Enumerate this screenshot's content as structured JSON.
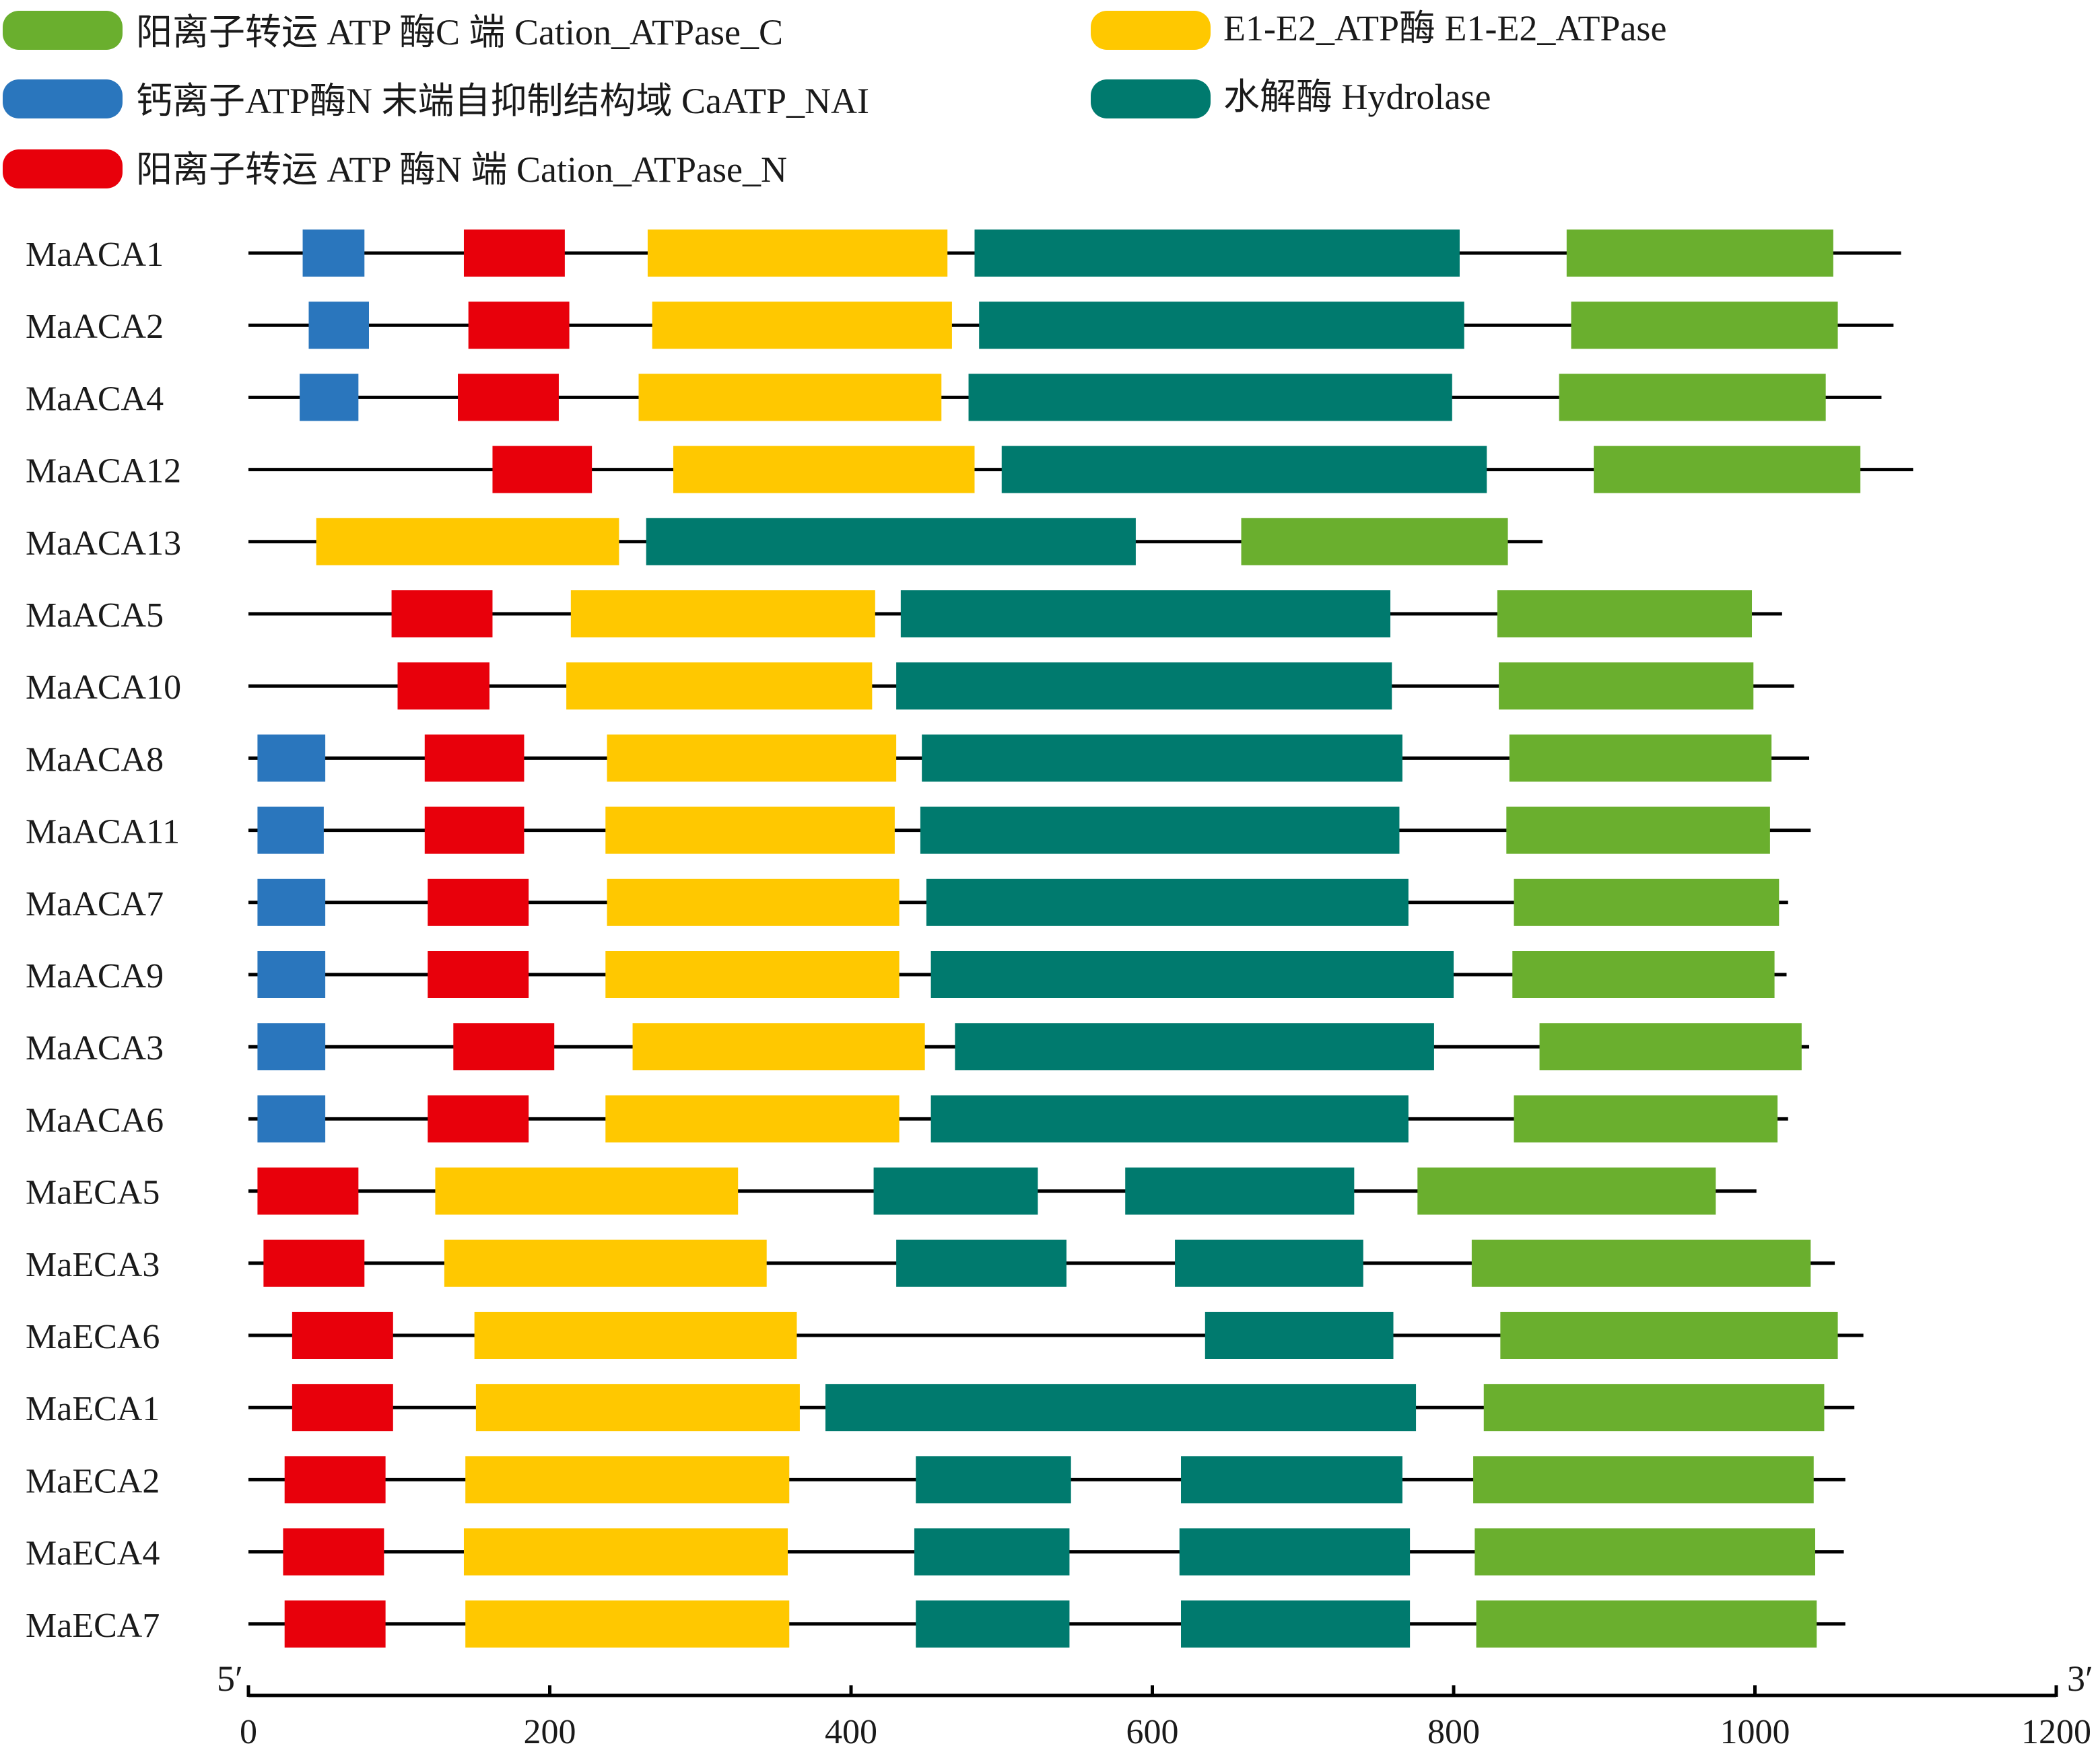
{
  "legend": [
    {
      "key": "cation_c",
      "label": "阳离子转运 ATP 酶C 端 Cation_ATPase_C"
    },
    {
      "key": "e1e2",
      "label": "E1-E2_ATP酶 E1-E2_ATPase"
    },
    {
      "key": "caatp_nai",
      "label": "钙离子ATP酶N 末端自抑制结构域 CaATP_NAI"
    },
    {
      "key": "hydrolase",
      "label": "水解酶 Hydrolase"
    },
    {
      "key": "cation_n",
      "label": "阳离子转运 ATP 酶N 端 Cation_ATPase_N"
    }
  ],
  "colors": {
    "cation_c": "#6aaf2e",
    "e1e2": "#ffc800",
    "caatp_nai": "#2a76bd",
    "hydrolase": "#007a6e",
    "cation_n": "#e8000b",
    "backbone": "#000000"
  },
  "axis": {
    "min": 0,
    "max": 1200,
    "ticks": [
      "0",
      "200",
      "400",
      "600",
      "800",
      "1000",
      "1200"
    ],
    "start_label": "5′",
    "end_label": "3′"
  },
  "chart_data": {
    "type": "domain-map",
    "x_range": [
      0,
      1200
    ],
    "genes": [
      {
        "name": "MaACA1",
        "length": 1097,
        "domains": [
          {
            "type": "caatp_nai",
            "start": 36,
            "end": 77
          },
          {
            "type": "cation_n",
            "start": 143,
            "end": 210
          },
          {
            "type": "e1e2",
            "start": 265,
            "end": 464
          },
          {
            "type": "hydrolase",
            "start": 482,
            "end": 804
          },
          {
            "type": "cation_c",
            "start": 875,
            "end": 1052
          }
        ]
      },
      {
        "name": "MaACA2",
        "length": 1092,
        "domains": [
          {
            "type": "caatp_nai",
            "start": 40,
            "end": 80
          },
          {
            "type": "cation_n",
            "start": 146,
            "end": 213
          },
          {
            "type": "e1e2",
            "start": 268,
            "end": 467
          },
          {
            "type": "hydrolase",
            "start": 485,
            "end": 807
          },
          {
            "type": "cation_c",
            "start": 878,
            "end": 1055
          }
        ]
      },
      {
        "name": "MaACA4",
        "length": 1084,
        "domains": [
          {
            "type": "caatp_nai",
            "start": 34,
            "end": 73
          },
          {
            "type": "cation_n",
            "start": 139,
            "end": 206
          },
          {
            "type": "e1e2",
            "start": 259,
            "end": 460
          },
          {
            "type": "hydrolase",
            "start": 478,
            "end": 799
          },
          {
            "type": "cation_c",
            "start": 870,
            "end": 1047
          }
        ]
      },
      {
        "name": "MaACA12",
        "length": 1105,
        "domains": [
          {
            "type": "cation_n",
            "start": 162,
            "end": 228
          },
          {
            "type": "e1e2",
            "start": 282,
            "end": 482
          },
          {
            "type": "hydrolase",
            "start": 500,
            "end": 822
          },
          {
            "type": "cation_c",
            "start": 893,
            "end": 1070
          }
        ]
      },
      {
        "name": "MaACA13",
        "length": 859,
        "domains": [
          {
            "type": "e1e2",
            "start": 45,
            "end": 246
          },
          {
            "type": "hydrolase",
            "start": 264,
            "end": 589
          },
          {
            "type": "cation_c",
            "start": 659,
            "end": 836
          }
        ]
      },
      {
        "name": "MaACA5",
        "length": 1018,
        "domains": [
          {
            "type": "cation_n",
            "start": 95,
            "end": 162
          },
          {
            "type": "e1e2",
            "start": 214,
            "end": 416
          },
          {
            "type": "hydrolase",
            "start": 433,
            "end": 758
          },
          {
            "type": "cation_c",
            "start": 829,
            "end": 998
          }
        ]
      },
      {
        "name": "MaACA10",
        "length": 1026,
        "domains": [
          {
            "type": "cation_n",
            "start": 99,
            "end": 160
          },
          {
            "type": "e1e2",
            "start": 211,
            "end": 414
          },
          {
            "type": "hydrolase",
            "start": 430,
            "end": 759
          },
          {
            "type": "cation_c",
            "start": 830,
            "end": 999
          }
        ]
      },
      {
        "name": "MaACA8",
        "length": 1036,
        "domains": [
          {
            "type": "caatp_nai",
            "start": 6,
            "end": 51
          },
          {
            "type": "cation_n",
            "start": 117,
            "end": 183
          },
          {
            "type": "e1e2",
            "start": 238,
            "end": 430
          },
          {
            "type": "hydrolase",
            "start": 447,
            "end": 766
          },
          {
            "type": "cation_c",
            "start": 837,
            "end": 1011
          }
        ]
      },
      {
        "name": "MaACA11",
        "length": 1037,
        "domains": [
          {
            "type": "caatp_nai",
            "start": 6,
            "end": 50
          },
          {
            "type": "cation_n",
            "start": 117,
            "end": 183
          },
          {
            "type": "e1e2",
            "start": 237,
            "end": 429
          },
          {
            "type": "hydrolase",
            "start": 446,
            "end": 764
          },
          {
            "type": "cation_c",
            "start": 835,
            "end": 1010
          }
        ]
      },
      {
        "name": "MaACA7",
        "length": 1022,
        "domains": [
          {
            "type": "caatp_nai",
            "start": 6,
            "end": 51
          },
          {
            "type": "cation_n",
            "start": 119,
            "end": 186
          },
          {
            "type": "e1e2",
            "start": 238,
            "end": 432
          },
          {
            "type": "hydrolase",
            "start": 450,
            "end": 770
          },
          {
            "type": "cation_c",
            "start": 840,
            "end": 1016
          }
        ]
      },
      {
        "name": "MaACA9",
        "length": 1021,
        "domains": [
          {
            "type": "caatp_nai",
            "start": 6,
            "end": 51
          },
          {
            "type": "cation_n",
            "start": 119,
            "end": 186
          },
          {
            "type": "e1e2",
            "start": 237,
            "end": 432
          },
          {
            "type": "hydrolase",
            "start": 453,
            "end": 800
          },
          {
            "type": "cation_c",
            "start": 839,
            "end": 1013
          }
        ]
      },
      {
        "name": "MaACA3",
        "length": 1036,
        "domains": [
          {
            "type": "caatp_nai",
            "start": 6,
            "end": 51
          },
          {
            "type": "cation_n",
            "start": 136,
            "end": 203
          },
          {
            "type": "e1e2",
            "start": 255,
            "end": 449
          },
          {
            "type": "hydrolase",
            "start": 469,
            "end": 787
          },
          {
            "type": "cation_c",
            "start": 857,
            "end": 1031
          }
        ]
      },
      {
        "name": "MaACA6",
        "length": 1022,
        "domains": [
          {
            "type": "caatp_nai",
            "start": 6,
            "end": 51
          },
          {
            "type": "cation_n",
            "start": 119,
            "end": 186
          },
          {
            "type": "e1e2",
            "start": 237,
            "end": 432
          },
          {
            "type": "hydrolase",
            "start": 453,
            "end": 770
          },
          {
            "type": "cation_c",
            "start": 840,
            "end": 1015
          }
        ]
      },
      {
        "name": "MaECA5",
        "length": 1001,
        "domains": [
          {
            "type": "cation_n",
            "start": 6,
            "end": 73
          },
          {
            "type": "e1e2",
            "start": 124,
            "end": 325
          },
          {
            "type": "hydrolase",
            "start": 415,
            "end": 524
          },
          {
            "type": "hydrolase",
            "start": 582,
            "end": 734
          },
          {
            "type": "cation_c",
            "start": 776,
            "end": 974
          }
        ]
      },
      {
        "name": "MaECA3",
        "length": 1053,
        "domains": [
          {
            "type": "cation_n",
            "start": 10,
            "end": 77
          },
          {
            "type": "e1e2",
            "start": 130,
            "end": 344
          },
          {
            "type": "hydrolase",
            "start": 430,
            "end": 543
          },
          {
            "type": "hydrolase",
            "start": 615,
            "end": 740
          },
          {
            "type": "cation_c",
            "start": 812,
            "end": 1037
          }
        ]
      },
      {
        "name": "MaECA6",
        "length": 1072,
        "domains": [
          {
            "type": "cation_n",
            "start": 29,
            "end": 96
          },
          {
            "type": "e1e2",
            "start": 150,
            "end": 364
          },
          {
            "type": "hydrolase",
            "start": 635,
            "end": 760
          },
          {
            "type": "cation_c",
            "start": 831,
            "end": 1055
          }
        ]
      },
      {
        "name": "MaECA1",
        "length": 1066,
        "domains": [
          {
            "type": "cation_n",
            "start": 29,
            "end": 96
          },
          {
            "type": "e1e2",
            "start": 151,
            "end": 366
          },
          {
            "type": "hydrolase",
            "start": 383,
            "end": 775
          },
          {
            "type": "cation_c",
            "start": 820,
            "end": 1046
          }
        ]
      },
      {
        "name": "MaECA2",
        "length": 1060,
        "domains": [
          {
            "type": "cation_n",
            "start": 24,
            "end": 91
          },
          {
            "type": "e1e2",
            "start": 144,
            "end": 359
          },
          {
            "type": "hydrolase",
            "start": 443,
            "end": 546
          },
          {
            "type": "hydrolase",
            "start": 619,
            "end": 766
          },
          {
            "type": "cation_c",
            "start": 813,
            "end": 1039
          }
        ]
      },
      {
        "name": "MaECA4",
        "length": 1059,
        "domains": [
          {
            "type": "cation_n",
            "start": 23,
            "end": 90
          },
          {
            "type": "e1e2",
            "start": 143,
            "end": 358
          },
          {
            "type": "hydrolase",
            "start": 442,
            "end": 545
          },
          {
            "type": "hydrolase",
            "start": 618,
            "end": 771
          },
          {
            "type": "cation_c",
            "start": 814,
            "end": 1040
          }
        ]
      },
      {
        "name": "MaECA7",
        "length": 1060,
        "domains": [
          {
            "type": "cation_n",
            "start": 24,
            "end": 91
          },
          {
            "type": "e1e2",
            "start": 144,
            "end": 359
          },
          {
            "type": "hydrolase",
            "start": 443,
            "end": 545
          },
          {
            "type": "hydrolase",
            "start": 619,
            "end": 771
          },
          {
            "type": "cation_c",
            "start": 815,
            "end": 1041
          }
        ]
      }
    ]
  }
}
